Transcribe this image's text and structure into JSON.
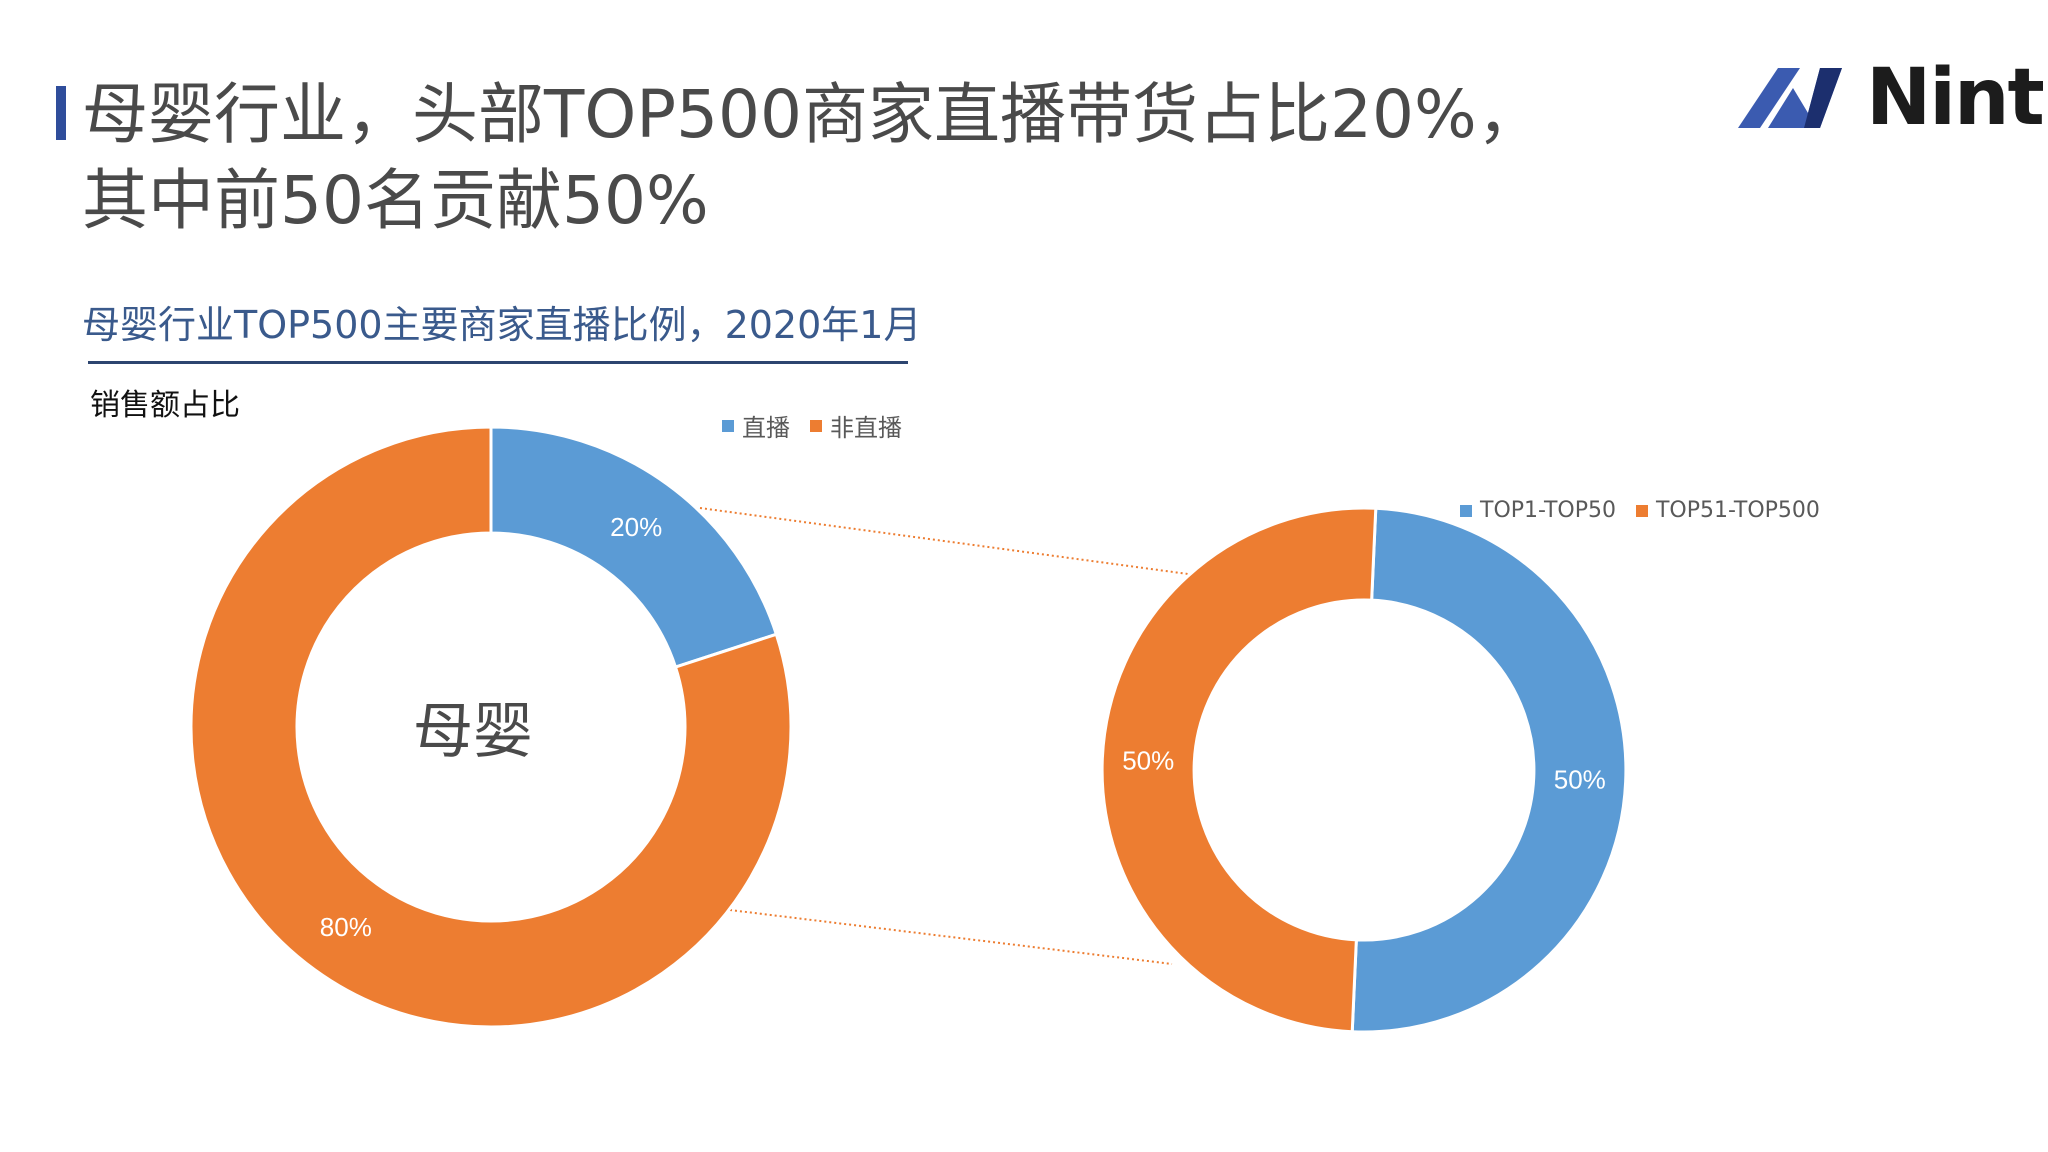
{
  "header": {
    "title_line1": "母婴行业，头部TOP500商家直播带货占比20%，",
    "title_line2": "其中前50名贡献50%",
    "logo_text": "Nint",
    "logo_colors": [
      "#3b5bb0",
      "#1c2f6e"
    ]
  },
  "chart_data": [
    {
      "type": "pie",
      "style": "donut",
      "title": "母婴行业TOP500主要商家直播比例，2020年1月",
      "ylabel": "销售额占比",
      "center_label": "母婴",
      "categories": [
        "直播",
        "非直播"
      ],
      "values": [
        20,
        80
      ],
      "data_labels": [
        "20%",
        "80%"
      ],
      "colors": [
        "#5b9bd5",
        "#ed7d31"
      ],
      "legend": "top-right"
    },
    {
      "type": "pie",
      "style": "donut",
      "categories": [
        "TOP1-TOP50",
        "TOP51-TOP500"
      ],
      "values": [
        50,
        50
      ],
      "data_labels": [
        "50%",
        "50%"
      ],
      "colors": [
        "#5b9bd5",
        "#ed7d31"
      ],
      "legend": "top-right"
    }
  ],
  "connector_color": "#ed7d31"
}
